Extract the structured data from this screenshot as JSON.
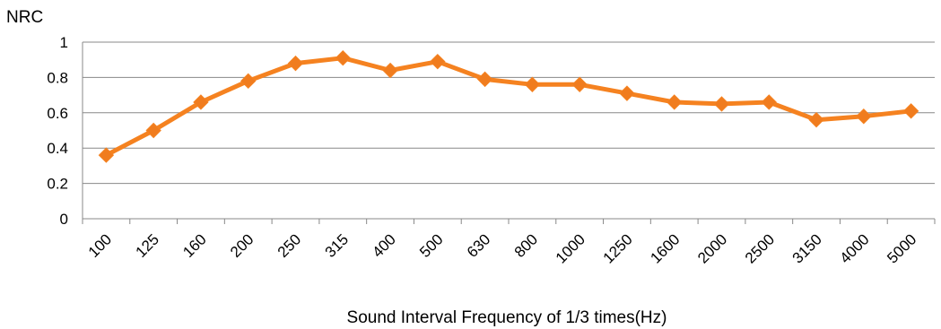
{
  "chart_data": {
    "type": "line",
    "title": "",
    "ylabel": "NRC",
    "xlabel": "Sound Interval Frequency of 1/3 times(Hz)",
    "ylim": [
      0,
      1
    ],
    "yticks": [
      "0",
      "0.2",
      "0.4",
      "0.6",
      "0.8",
      "1"
    ],
    "grid": true,
    "legend": "none",
    "categories": [
      "100",
      "125",
      "160",
      "200",
      "250",
      "315",
      "400",
      "500",
      "630",
      "800",
      "1000",
      "1250",
      "1600",
      "2000",
      "2500",
      "3150",
      "4000",
      "5000"
    ],
    "series": [
      {
        "values": [
          0.36,
          0.5,
          0.66,
          0.78,
          0.88,
          0.91,
          0.84,
          0.89,
          0.79,
          0.76,
          0.76,
          0.71,
          0.66,
          0.65,
          0.66,
          0.56,
          0.58,
          0.61
        ],
        "color": "#f58220",
        "marker_color": "#f07c1e",
        "marker": "diamond"
      }
    ],
    "colors": {
      "grid": "#888888",
      "axis": "#888888"
    }
  }
}
